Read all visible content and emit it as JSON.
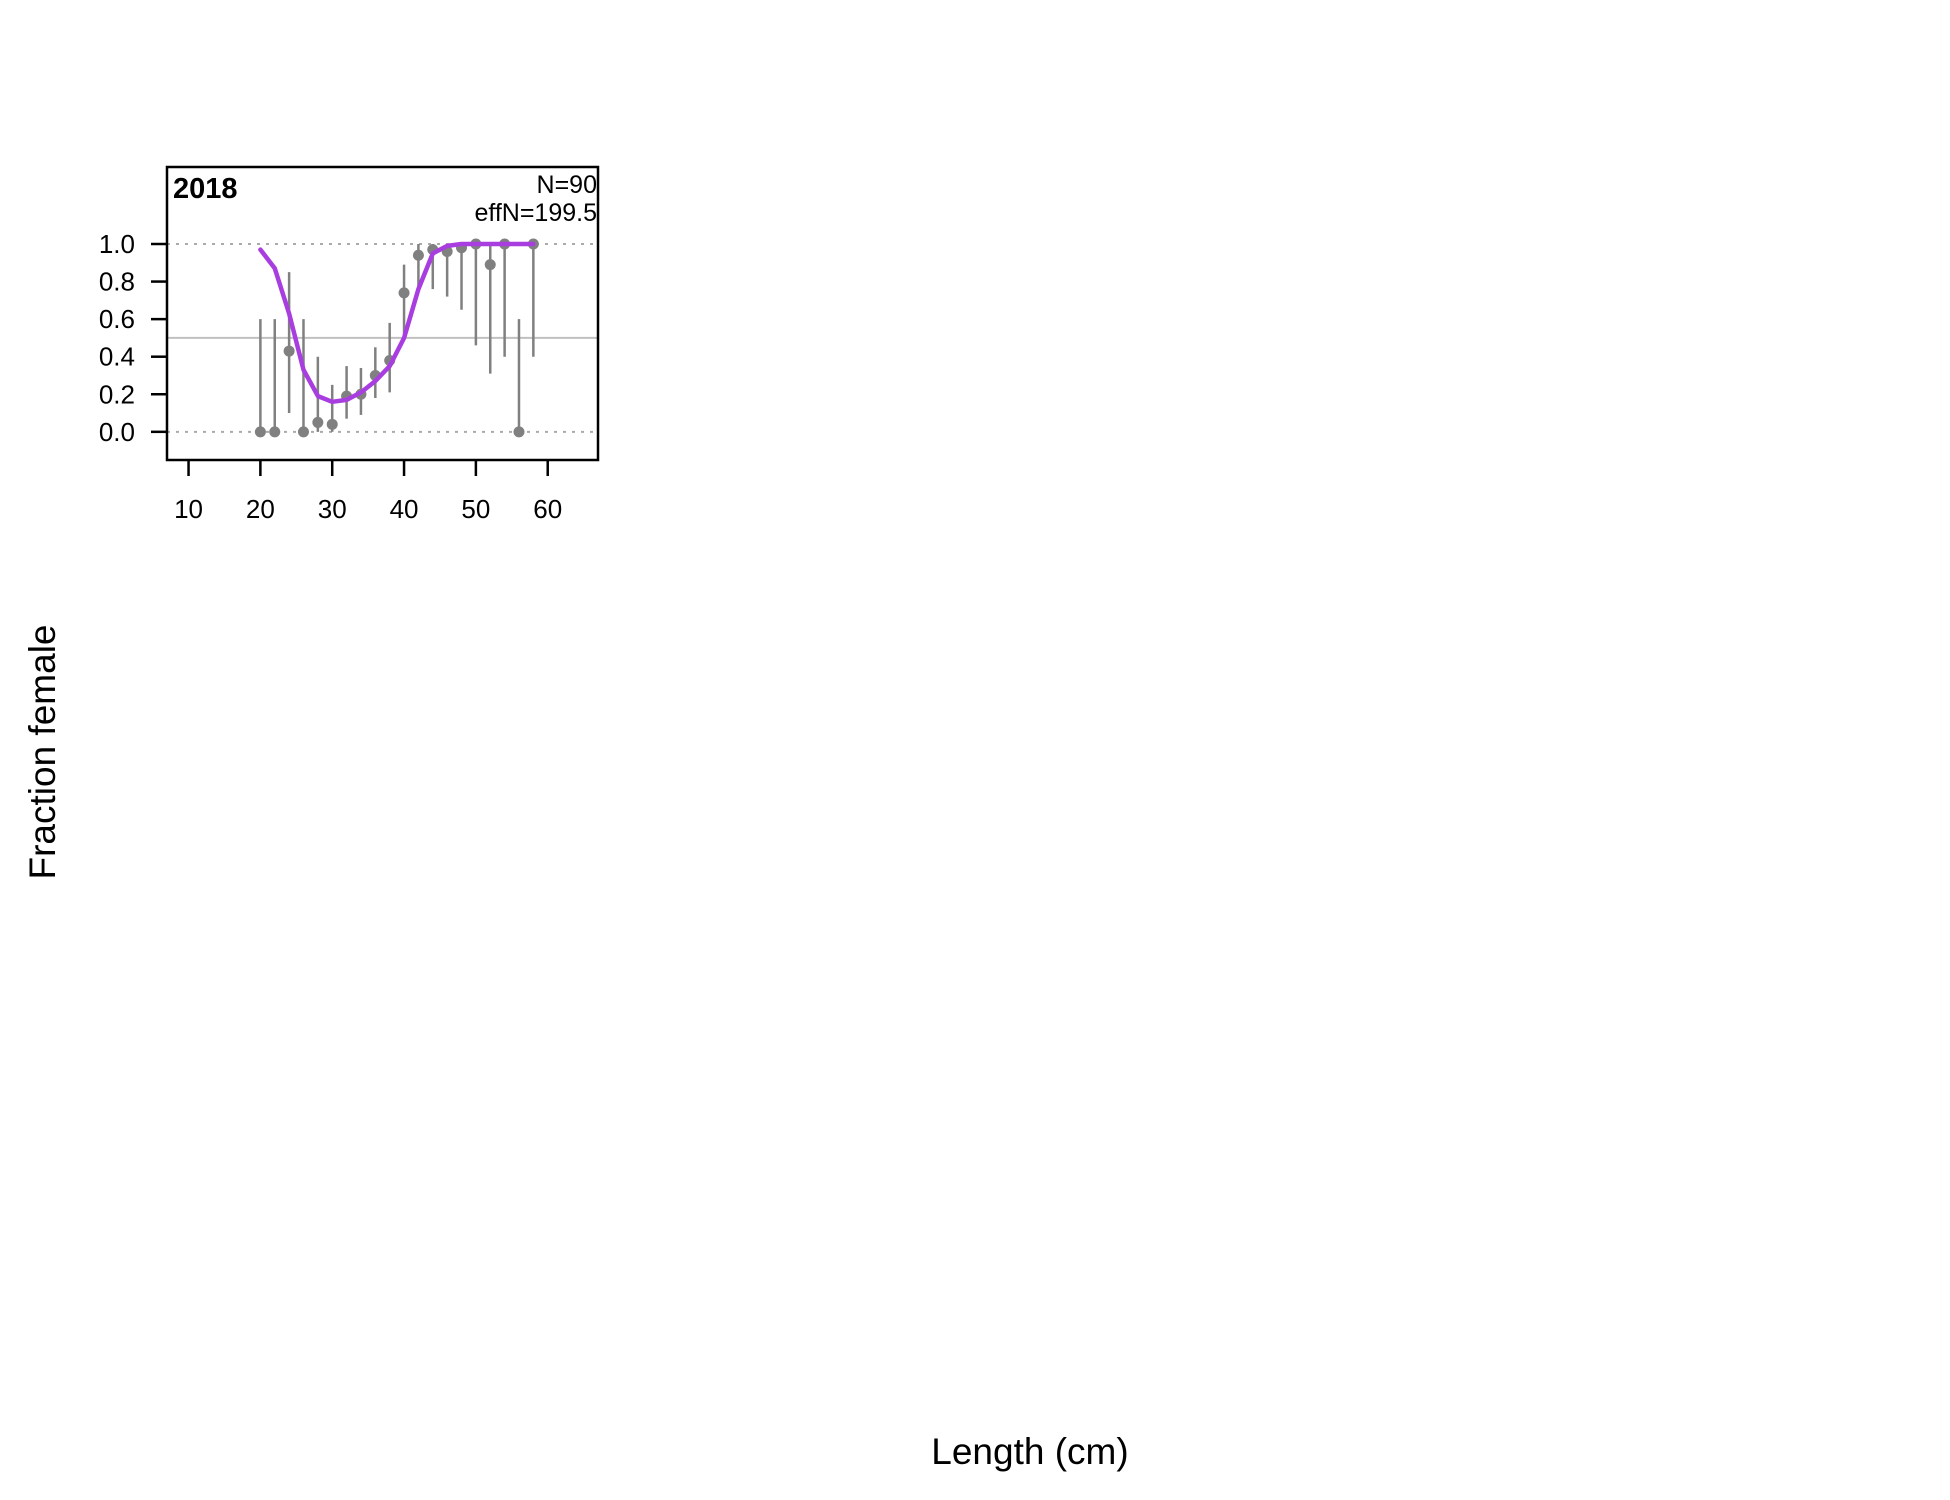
{
  "chart_data": {
    "type": "scatter",
    "panel_title": "2018",
    "annotations": {
      "n": "N=90",
      "effn": "effN=199.5"
    },
    "xlabel": "Length (cm)",
    "ylabel": "Fraction female",
    "xlim": [
      7,
      67
    ],
    "ylim": [
      -0.15,
      1.41
    ],
    "x_ticks": [
      10,
      20,
      30,
      40,
      50,
      60
    ],
    "y_ticks": [
      0.0,
      0.2,
      0.4,
      0.6,
      0.8,
      1.0
    ],
    "y_tick_labels": [
      "0.0",
      "0.2",
      "0.4",
      "0.6",
      "0.8",
      "1.0"
    ],
    "reference_lines": {
      "dotted": [
        0,
        1
      ],
      "solid": [
        0.5
      ]
    },
    "observed": {
      "x": [
        20,
        22,
        24,
        26,
        28,
        30,
        32,
        34,
        36,
        38,
        40,
        42,
        44,
        46,
        48,
        50,
        52,
        54,
        56,
        58
      ],
      "y": [
        0.0,
        0.0,
        0.43,
        0.0,
        0.05,
        0.04,
        0.19,
        0.2,
        0.3,
        0.38,
        0.74,
        0.94,
        0.97,
        0.96,
        0.98,
        1.0,
        0.89,
        1.0,
        0.0,
        1.0
      ],
      "lo": [
        0.0,
        0.0,
        0.1,
        0.0,
        0.0,
        0.0,
        0.07,
        0.09,
        0.18,
        0.21,
        0.5,
        0.75,
        0.76,
        0.72,
        0.65,
        0.46,
        0.31,
        0.4,
        0.0,
        0.4
      ],
      "hi": [
        0.6,
        0.6,
        0.85,
        0.6,
        0.4,
        0.25,
        0.35,
        0.34,
        0.45,
        0.58,
        0.89,
        1.0,
        1.0,
        1.0,
        1.0,
        1.0,
        1.0,
        1.0,
        0.6,
        1.0
      ]
    },
    "expected": {
      "x": [
        20,
        22,
        24,
        26,
        28,
        30,
        32,
        34,
        36,
        38,
        40,
        42,
        44,
        46,
        48,
        50,
        52,
        54,
        56,
        58
      ],
      "y": [
        0.97,
        0.87,
        0.63,
        0.33,
        0.19,
        0.16,
        0.17,
        0.21,
        0.27,
        0.35,
        0.5,
        0.76,
        0.95,
        0.99,
        1.0,
        1.0,
        1.0,
        1.0,
        1.0,
        1.0
      ]
    },
    "colors": {
      "points": "#808080",
      "fit": "#A93EE0",
      "dotted": "#AAAAAA",
      "solid": "#C0C0C0"
    }
  }
}
